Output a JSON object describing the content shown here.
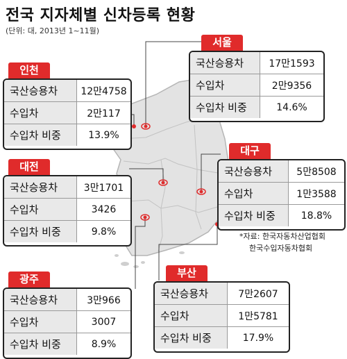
{
  "title": "전국 지자체별 신차등록 현황",
  "unit_note": "(단위: 대, 2013년 1~11월)",
  "source": {
    "line1": "*자료: 한국자동차산업협회",
    "line2": "한국수입자동차협회"
  },
  "colors": {
    "tag": "#e02b2b",
    "map_fill": "#e3e3e3",
    "label_bg": "#e9e9e9"
  },
  "regions": {
    "seoul": {
      "name": "서울",
      "rows": [
        {
          "label": "국산승용차",
          "value": "17만1593"
        },
        {
          "label": "수입차",
          "value": "2만9356"
        },
        {
          "label": "수입차 비중",
          "value": "14.6%"
        }
      ]
    },
    "incheon": {
      "name": "인천",
      "rows": [
        {
          "label": "국산승용차",
          "value": "12만4758"
        },
        {
          "label": "수입차",
          "value": "2만117"
        },
        {
          "label": "수입차 비중",
          "value": "13.9%"
        }
      ]
    },
    "daejeon": {
      "name": "대전",
      "rows": [
        {
          "label": "국산승용차",
          "value": "3만1701"
        },
        {
          "label": "수입차",
          "value": "3426"
        },
        {
          "label": "수입차 비중",
          "value": "9.8%"
        }
      ]
    },
    "daegu": {
      "name": "대구",
      "rows": [
        {
          "label": "국산승용차",
          "value": "5만8508"
        },
        {
          "label": "수입차",
          "value": "1만3588"
        },
        {
          "label": "수입차 비중",
          "value": "18.8%"
        }
      ]
    },
    "gwangju": {
      "name": "광주",
      "rows": [
        {
          "label": "국산승용차",
          "value": "3만966"
        },
        {
          "label": "수입차",
          "value": "3007"
        },
        {
          "label": "수입차 비중",
          "value": "8.9%"
        }
      ]
    },
    "busan": {
      "name": "부산",
      "rows": [
        {
          "label": "국산승용차",
          "value": "7만2607"
        },
        {
          "label": "수입차",
          "value": "1만5781"
        },
        {
          "label": "수입차 비중",
          "value": "17.9%"
        }
      ]
    }
  }
}
